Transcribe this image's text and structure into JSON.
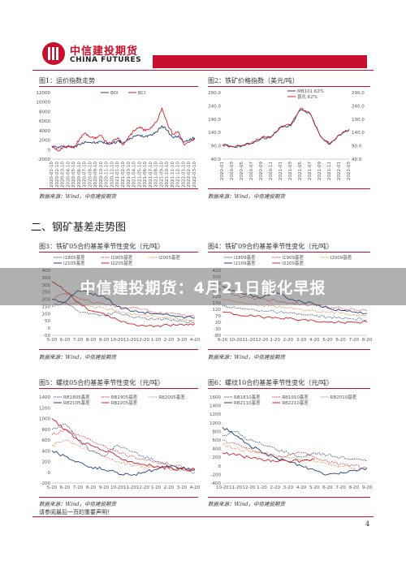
{
  "header": {
    "logo_cn": "中信建投期货",
    "logo_en": "CHINA FUTURES"
  },
  "section_title": "二、钢矿基差走势图",
  "overlay_title": "中信建投期货：4月21日能化早报",
  "source_note": "数据来源：Wind，中信建投期货",
  "disclaimer": "请参阅最后一页的重要声明！",
  "page_number": "4",
  "colors": {
    "brand": "#c8102e",
    "navy": "#1f3f7a",
    "orange": "#e07b39",
    "red": "#d0202a",
    "blue": "#2f5bb0"
  },
  "chart_data": [
    {
      "title": "图1：运价指数走势",
      "type": "line",
      "x": [
        "2020-01-10",
        "2020-02-10",
        "2020-03-10",
        "2020-04-10",
        "2020-05-10",
        "2020-06-10",
        "2020-07-10",
        "2020-08-10",
        "2020-09-10",
        "2020-10-10",
        "2020-11-10",
        "2020-12-10",
        "2021-01-10",
        "2021-02-10",
        "2021-03-10",
        "2021-04-10",
        "2021-05-10",
        "2021-06-10",
        "2021-07-10",
        "2021-08-10",
        "2021-09-10",
        "2021-10-10",
        "2021-11-10",
        "2021-12-10",
        "2022-01-10",
        "2022-02-10",
        "2022-03-10"
      ],
      "ylim": [
        -2000,
        12000
      ],
      "yticks": [
        "12000",
        "10000",
        "8000",
        "6000",
        "4000",
        "2000",
        "0",
        "-2000"
      ],
      "series": [
        {
          "name": "BDI",
          "values": [
            700,
            480,
            620,
            650,
            500,
            1100,
            1700,
            1500,
            1400,
            1700,
            1200,
            1350,
            1800,
            1450,
            2100,
            2800,
            3000,
            2800,
            3200,
            3700,
            5000,
            4000,
            2500,
            2900,
            1600,
            2000,
            2500
          ]
        },
        {
          "name": "BCI",
          "values": [
            800,
            -200,
            400,
            900,
            300,
            2200,
            3500,
            2600,
            2300,
            3000,
            1400,
            1700,
            2500,
            1000,
            2800,
            4000,
            4800,
            3900,
            4700,
            5800,
            8800,
            5500,
            3200,
            3800,
            1000,
            1500,
            2200
          ]
        }
      ]
    },
    {
      "title": "图2：铁矿价格指数（美元/吨）",
      "type": "line",
      "x": [
        "2020-01",
        "2020-03",
        "2020-05",
        "2020-07",
        "2020-09",
        "2020-11",
        "2021-01",
        "2021-03",
        "2021-05",
        "2021-07",
        "2021-09",
        "2021-11",
        "2022-01",
        "2022-03"
      ],
      "ylim": [
        40,
        290
      ],
      "yticks": [
        "290.0",
        "240.0",
        "190.0",
        "140.0",
        "90.0",
        "40.0"
      ],
      "series": [
        {
          "name": "MB101.62%",
          "values": [
            92,
            88,
            90,
            100,
            118,
            122,
            160,
            165,
            225,
            210,
            130,
            95,
            130,
            150
          ]
        },
        {
          "name": "普氏.62%",
          "values": [
            93,
            87,
            91,
            102,
            120,
            124,
            162,
            168,
            230,
            212,
            128,
            96,
            132,
            152
          ]
        }
      ]
    },
    {
      "title": "图3：铁矿05合约基差季节性变化（元/吨）",
      "type": "line",
      "x": [
        "5-20",
        "6-20",
        "7-20",
        "8-20",
        "9-20",
        "10-20",
        "11-20",
        "12-20",
        "1-20",
        "2-20",
        "3-20",
        "4-20"
      ],
      "ylim": [
        -50,
        400
      ],
      "yticks": [
        "400",
        "350",
        "300",
        "250",
        "200",
        "150",
        "100",
        "50",
        "0",
        "-50"
      ],
      "series": [
        {
          "name": "I1805基差",
          "values": [
            150,
            180,
            120,
            100,
            90,
            110,
            80,
            70,
            60,
            60,
            50,
            40
          ]
        },
        {
          "name": "I1905基差",
          "values": [
            200,
            240,
            210,
            180,
            170,
            150,
            140,
            130,
            110,
            100,
            90,
            80
          ]
        },
        {
          "name": "I2005基差",
          "values": [
            150,
            170,
            180,
            150,
            140,
            120,
            100,
            90,
            80,
            70,
            60,
            50
          ]
        },
        {
          "name": "I2105基差",
          "values": [
            200,
            180,
            260,
            240,
            220,
            150,
            120,
            110,
            100,
            90,
            80,
            70
          ]
        },
        {
          "name": "I2205基差",
          "values": [
            320,
            260,
            180,
            120,
            100,
            60,
            30,
            20,
            15,
            20,
            25,
            30
          ]
        }
      ]
    },
    {
      "title": "图4：铁矿09合约基差季节性变化（元/吨）",
      "type": "line",
      "x": [
        "9-20",
        "10-20",
        "11-20",
        "12-20",
        "1-20",
        "2-20",
        "3-20",
        "4-20",
        "5-20",
        "6-20",
        "7-20",
        "8-20"
      ],
      "ylim": [
        -80,
        420
      ],
      "yticks": [
        "420",
        "370",
        "320",
        "270",
        "220",
        "170",
        "120",
        "70",
        "20",
        "-30",
        "-80"
      ],
      "series": [
        {
          "name": "I1809基差",
          "values": [
            150,
            130,
            120,
            110,
            100,
            90,
            80,
            70,
            60,
            50,
            45,
            40
          ]
        },
        {
          "name": "I1909基差",
          "values": [
            250,
            230,
            210,
            200,
            190,
            170,
            160,
            150,
            140,
            130,
            120,
            110
          ]
        },
        {
          "name": "I2009基差",
          "values": [
            200,
            180,
            160,
            150,
            140,
            130,
            120,
            110,
            100,
            90,
            80,
            70
          ]
        },
        {
          "name": "I2109基差",
          "values": [
            300,
            250,
            230,
            210,
            260,
            200,
            180,
            160,
            130,
            110,
            100,
            90
          ]
        },
        {
          "name": "I2209基差",
          "values": [
            100,
            80,
            70,
            60,
            60,
            50,
            40,
            30,
            20,
            20,
            20,
            20
          ]
        }
      ]
    },
    {
      "title": "图5：螺纹05合约基差季节性变化（元/吨）",
      "type": "line",
      "x": [
        "5-20",
        "6-20",
        "7-20",
        "8-20",
        "9-20",
        "10-20",
        "11-20",
        "12-20",
        "1-20",
        "2-20",
        "3-20",
        "4-20"
      ],
      "ylim": [
        -200,
        1400
      ],
      "yticks": [
        "1400",
        "1200",
        "1000",
        "800",
        "600",
        "400",
        "200",
        "0",
        "-200"
      ],
      "series": [
        {
          "name": "RB1805基差",
          "values": [
            800,
            900,
            600,
            400,
            300,
            500,
            400,
            300,
            200,
            100,
            50,
            0
          ]
        },
        {
          "name": "RB1905基差",
          "values": [
            700,
            800,
            700,
            600,
            500,
            400,
            300,
            250,
            200,
            150,
            100,
            50
          ]
        },
        {
          "name": "RB2005基差",
          "values": [
            500,
            600,
            500,
            400,
            300,
            200,
            150,
            100,
            80,
            60,
            40,
            30
          ]
        },
        {
          "name": "RB2105基差",
          "values": [
            400,
            300,
            200,
            100,
            50,
            0,
            -50,
            0,
            50,
            100,
            80,
            50
          ]
        },
        {
          "name": "RB2205基差",
          "values": [
            1000,
            800,
            600,
            500,
            400,
            300,
            200,
            150,
            100,
            80,
            60,
            50
          ]
        }
      ]
    },
    {
      "title": "图6：螺纹10合约基差季节性变化（元/吨）",
      "type": "line",
      "x": [
        "10-20",
        "11-20",
        "12-20",
        "1-20",
        "2-20",
        "3-20",
        "4-20",
        "5-20",
        "6-20",
        "7-20",
        "8-20",
        "9-20"
      ],
      "ylim": [
        -400,
        1600
      ],
      "yticks": [
        "1600",
        "1400",
        "1200",
        "1000",
        "800",
        "600",
        "400",
        "200",
        "0",
        "-200",
        "-400"
      ],
      "series": [
        {
          "name": "RB1810基差",
          "values": [
            700,
            800,
            600,
            500,
            400,
            300,
            200,
            300,
            250,
            200,
            150,
            100
          ]
        },
        {
          "name": "RB1910基差",
          "values": [
            600,
            500,
            400,
            300,
            200,
            250,
            300,
            200,
            100,
            50,
            0,
            -50
          ]
        },
        {
          "name": "RB2010基差",
          "values": [
            500,
            400,
            350,
            300,
            250,
            200,
            150,
            100,
            50,
            0,
            -50,
            -100
          ]
        },
        {
          "name": "RB2110基差",
          "values": [
            900,
            700,
            500,
            300,
            200,
            100,
            0,
            -100,
            -200,
            -150,
            -100,
            -50
          ]
        },
        {
          "name": "RB2210基差",
          "values": [
            300,
            250,
            200,
            150,
            100,
            100,
            120,
            150,
            null,
            null,
            null,
            null
          ]
        }
      ]
    }
  ]
}
